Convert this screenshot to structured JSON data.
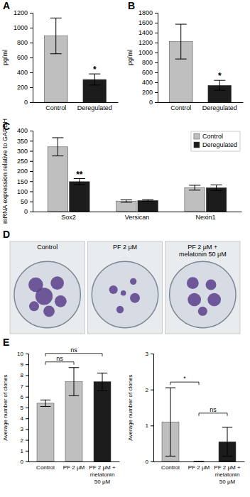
{
  "chart_data": [
    {
      "type": "bar",
      "panel_label": "A",
      "categories": [
        "Control",
        "Deregulated"
      ],
      "values": [
        890,
        305
      ],
      "errors": [
        240,
        75
      ],
      "colors": [
        "#bfbfbf",
        "#1c1c1c"
      ],
      "significance": [
        null,
        "*"
      ],
      "y_label": "pg/ml",
      "ylim": [
        0,
        1200
      ],
      "yticks": [
        0,
        200,
        400,
        600,
        800,
        1000,
        1200
      ],
      "grid": false
    },
    {
      "type": "bar",
      "panel_label": "B",
      "categories": [
        "Control",
        "Deregulated"
      ],
      "values": [
        1220,
        340
      ],
      "errors": [
        350,
        100
      ],
      "colors": [
        "#bfbfbf",
        "#1c1c1c"
      ],
      "significance": [
        null,
        "*"
      ],
      "y_label": "pg/ml",
      "ylim": [
        0,
        1800
      ],
      "yticks": [
        0,
        200,
        400,
        600,
        800,
        1000,
        1200,
        1400,
        1600,
        1800
      ],
      "grid": false
    },
    {
      "type": "bar",
      "panel_label": "C",
      "categories": [
        "Sox2",
        "Versican",
        "Nexin1"
      ],
      "series": [
        {
          "name": "Control",
          "color": "#bfbfbf",
          "values": [
            320,
            52,
            118
          ],
          "errors": [
            45,
            6,
            12
          ]
        },
        {
          "name": "Deregulated",
          "color": "#1c1c1c",
          "values": [
            148,
            55,
            118
          ],
          "errors": [
            15,
            4,
            14
          ],
          "significance": [
            "**",
            null,
            null
          ]
        }
      ],
      "y_label": "mRNA expression relative to GAPDH",
      "ylim": [
        0,
        400
      ],
      "yticks": [
        0,
        50,
        100,
        150,
        200,
        250,
        300,
        350,
        400
      ],
      "legend": "upper right",
      "grid": false
    },
    {
      "type": "bar",
      "panel_label": "E",
      "categories": [
        "Control",
        "PF 2 μM",
        "PF 2 μM + melatonin 50 μM"
      ],
      "values": [
        5.4,
        7.4,
        7.4
      ],
      "errors": [
        0.3,
        1.3,
        0.8
      ],
      "colors": [
        "#bfbfbf",
        "#bfbfbf",
        "#1c1c1c"
      ],
      "comparisons": [
        {
          "pair": [
            "Control",
            "PF 2 μM"
          ],
          "label": "ns"
        },
        {
          "pair": [
            "Control",
            "PF 2 μM + melatonin 50 μM"
          ],
          "label": "ns"
        }
      ],
      "y_label": "Average number of clones",
      "ylim": [
        0,
        10
      ],
      "yticks": [
        0,
        1,
        2,
        3,
        4,
        5,
        6,
        7,
        8,
        9,
        10
      ],
      "grid": false
    },
    {
      "type": "bar",
      "categories": [
        "Control",
        "PF 2 μM",
        "PF 2 μM + melatonin 50 μM"
      ],
      "values": [
        1.1,
        0,
        0.55
      ],
      "errors": [
        0.95,
        0,
        0.4
      ],
      "colors": [
        "#bfbfbf",
        "#bfbfbf",
        "#1c1c1c"
      ],
      "comparisons": [
        {
          "pair": [
            "Control",
            "PF 2 μM"
          ],
          "label": "*"
        },
        {
          "pair": [
            "PF 2 μM",
            "PF 2 μM + melatonin 50 μM"
          ],
          "label": "ns"
        }
      ],
      "y_label": "Average number of clones",
      "ylim": [
        0,
        3
      ],
      "yticks": [
        0,
        1,
        2,
        3
      ],
      "grid": false
    }
  ],
  "photo_panel": {
    "panel_label": "D",
    "captions": [
      [
        "Control"
      ],
      [
        "PF 2 μM"
      ],
      [
        "PF 2 μM +",
        "melatonin 50 μM"
      ]
    ]
  }
}
